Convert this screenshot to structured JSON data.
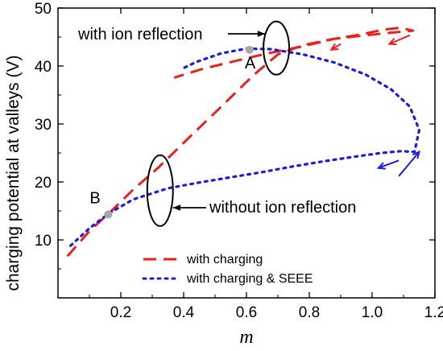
{
  "chart_data": {
    "type": "line",
    "xlabel": "m",
    "ylabel": "charging potential at valleys (V)",
    "xlim": [
      0.0,
      1.2
    ],
    "ylim": [
      0,
      50
    ],
    "x_ticks": [
      "0.2",
      "0.4",
      "0.6",
      "0.8",
      "1.0",
      "1.2"
    ],
    "y_ticks": [
      "10",
      "20",
      "30",
      "40",
      "50"
    ],
    "grid": false,
    "legend_position": "bottom-center",
    "series": [
      {
        "name": "with charging",
        "color": "#e8221b",
        "dash": "dashed",
        "points": [
          [
            0.03,
            7.2
          ],
          [
            0.1,
            11.5
          ],
          [
            0.17,
            15.0
          ],
          [
            0.24,
            18.7
          ],
          [
            0.32,
            22.5
          ],
          [
            0.42,
            27.8
          ],
          [
            0.52,
            33.0
          ],
          [
            0.62,
            38.3
          ],
          [
            0.7,
            42.0
          ],
          [
            0.78,
            43.6
          ],
          [
            0.87,
            44.6
          ],
          [
            0.96,
            45.4
          ],
          [
            1.04,
            46.3
          ],
          [
            1.09,
            46.6
          ],
          [
            1.13,
            46.1
          ],
          [
            1.07,
            45.8
          ],
          [
            0.98,
            45.3
          ],
          [
            0.88,
            44.7
          ],
          [
            0.78,
            43.4
          ],
          [
            0.66,
            42.1
          ],
          [
            0.56,
            40.8
          ],
          [
            0.46,
            39.5
          ],
          [
            0.37,
            38.0
          ]
        ]
      },
      {
        "name": "with charging & SEEE",
        "color": "#1d1ddb",
        "dash": "dotted",
        "points": [
          [
            0.04,
            9.0
          ],
          [
            0.1,
            12.0
          ],
          [
            0.16,
            14.5
          ],
          [
            0.24,
            17.0
          ],
          [
            0.35,
            18.9
          ],
          [
            0.45,
            19.9
          ],
          [
            0.55,
            20.8
          ],
          [
            0.65,
            21.7
          ],
          [
            0.75,
            22.7
          ],
          [
            0.85,
            23.6
          ],
          [
            0.95,
            24.4
          ],
          [
            1.03,
            25.0
          ],
          [
            1.09,
            25.3
          ],
          [
            1.135,
            25.2
          ],
          [
            1.15,
            29.0
          ],
          [
            1.12,
            33.0
          ],
          [
            1.06,
            36.0
          ],
          [
            0.98,
            38.5
          ],
          [
            0.88,
            40.6
          ],
          [
            0.78,
            42.0
          ],
          [
            0.68,
            42.9
          ],
          [
            0.6,
            43.0
          ],
          [
            0.52,
            42.2
          ],
          [
            0.44,
            40.7
          ],
          [
            0.39,
            39.4
          ]
        ]
      }
    ],
    "point_markers": [
      {
        "label": "A",
        "x": 0.61,
        "y": 42.8
      },
      {
        "label": "B",
        "x": 0.16,
        "y": 14.4
      }
    ],
    "annotations": [
      {
        "text": "with ion reflection",
        "target_x": 0.695,
        "target_y": 43.1
      },
      {
        "text": "without ion reflection",
        "target_x": 0.325,
        "target_y": 18.5
      }
    ],
    "direction_arrows": [
      {
        "series": "with charging",
        "x1": 1.12,
        "y1": 45.3,
        "x2": 1.055,
        "y2": 43.8
      },
      {
        "series": "with charging",
        "x1": 0.9,
        "y1": 43.8,
        "x2": 0.87,
        "y2": 42.8
      },
      {
        "series": "with charging & SEEE",
        "x1": 1.085,
        "y1": 21.0,
        "x2": 1.15,
        "y2": 25.2
      },
      {
        "series": "with charging & SEEE",
        "x1": 1.085,
        "y1": 23.7,
        "x2": 1.02,
        "y2": 22.4
      }
    ]
  }
}
